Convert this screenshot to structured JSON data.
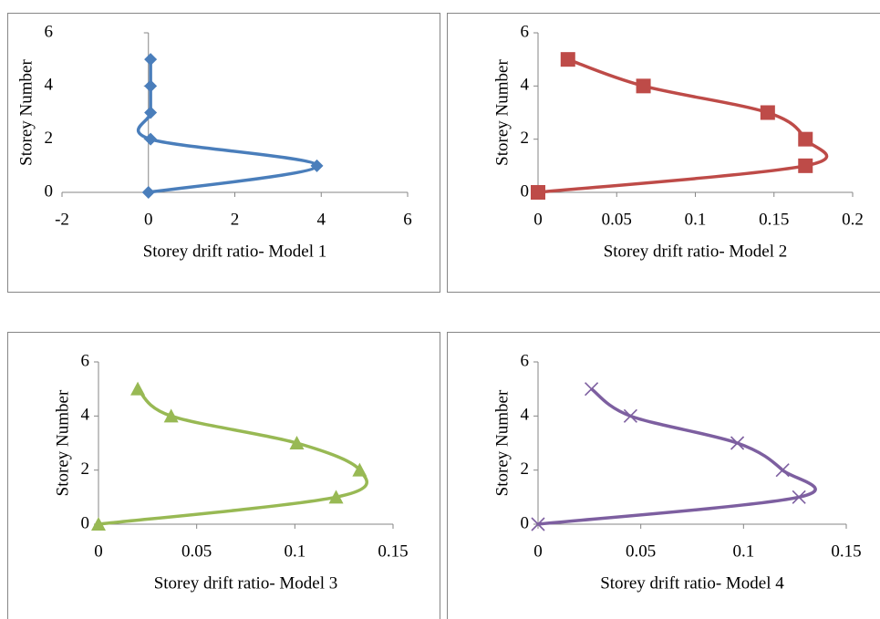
{
  "chart_data": [
    {
      "type": "line",
      "x_label": "Storey drift ratio- Model 1",
      "y_label": "Storey Number",
      "xlim": [
        -2,
        6
      ],
      "xticks": [
        -2,
        0,
        2,
        4,
        6
      ],
      "ylim": [
        0,
        6
      ],
      "yticks": [
        0,
        2,
        4,
        6
      ],
      "x": [
        0,
        3.9,
        0.05,
        0.05,
        0.05,
        0.05
      ],
      "series": [
        {
          "color": "#4a7ebb",
          "marker": "diamond",
          "values": [
            0,
            1,
            2,
            3,
            4,
            5
          ]
        }
      ]
    },
    {
      "type": "line",
      "x_label": "Storey drift ratio- Model 2",
      "y_label": "Storey Number",
      "xlim": [
        0,
        0.2
      ],
      "xticks": [
        0,
        0.05,
        0.1,
        0.15,
        0.2
      ],
      "ylim": [
        0,
        6
      ],
      "yticks": [
        0,
        2,
        4,
        6
      ],
      "x": [
        0,
        0.17,
        0.17,
        0.146,
        0.067,
        0.019
      ],
      "series": [
        {
          "color": "#be4b48",
          "marker": "square",
          "values": [
            0,
            1,
            2,
            3,
            4,
            5
          ]
        }
      ]
    },
    {
      "type": "line",
      "x_label": "Storey drift ratio- Model 3",
      "y_label": "Storey Number",
      "xlim": [
        0,
        0.15
      ],
      "xticks": [
        0,
        0.05,
        0.1,
        0.15
      ],
      "ylim": [
        0,
        6
      ],
      "yticks": [
        0,
        2,
        4,
        6
      ],
      "x": [
        0,
        0.121,
        0.133,
        0.101,
        0.037,
        0.02
      ],
      "series": [
        {
          "color": "#98b954",
          "marker": "triangle",
          "values": [
            0,
            1,
            2,
            3,
            4,
            5
          ]
        }
      ]
    },
    {
      "type": "line",
      "x_label": "Storey drift ratio- Model 4",
      "y_label": "Storey Number",
      "xlim": [
        0,
        0.15
      ],
      "xticks": [
        0,
        0.05,
        0.1,
        0.15
      ],
      "ylim": [
        0,
        6
      ],
      "yticks": [
        0,
        2,
        4,
        6
      ],
      "x": [
        0,
        0.127,
        0.119,
        0.097,
        0.045,
        0.026
      ],
      "series": [
        {
          "color": "#7d5fa0",
          "marker": "x",
          "values": [
            0,
            1,
            2,
            3,
            4,
            5
          ]
        }
      ]
    }
  ]
}
